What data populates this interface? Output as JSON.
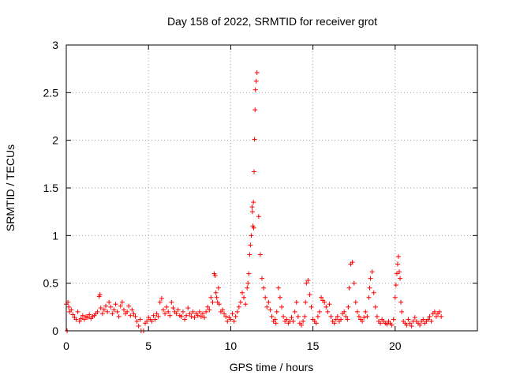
{
  "chart_data": {
    "type": "scatter",
    "title": "Day 158 of 2022, SRMTID for receiver grot",
    "xlabel": "GPS time / hours",
    "ylabel": "SRMTID / TECUs",
    "xlim": [
      0,
      25
    ],
    "ylim": [
      0,
      3
    ],
    "xticks": [
      0,
      5,
      10,
      15,
      20
    ],
    "yticks": [
      0,
      0.5,
      1,
      1.5,
      2,
      2.5,
      3
    ],
    "xtick_labels": [
      "0",
      "5",
      "10",
      "15",
      "20"
    ],
    "ytick_labels": [
      "0",
      "0.5",
      "1",
      "1.5",
      "2",
      "2.5",
      "3"
    ],
    "grid": true,
    "marker": "+",
    "marker_color": "#ff0000",
    "series": [
      {
        "name": "SRMTID",
        "x": [
          0.0,
          0.05,
          0.1,
          0.15,
          0.2,
          0.3,
          0.4,
          0.5,
          0.6,
          0.7,
          0.8,
          0.9,
          1.0,
          1.1,
          1.2,
          1.3,
          1.4,
          1.5,
          1.6,
          1.7,
          1.8,
          1.9,
          2.0,
          2.05,
          2.1,
          2.2,
          2.3,
          2.4,
          2.5,
          2.6,
          2.7,
          2.8,
          2.9,
          3.0,
          3.1,
          3.2,
          3.3,
          3.4,
          3.5,
          3.6,
          3.7,
          3.8,
          3.9,
          4.0,
          4.1,
          4.2,
          4.3,
          4.4,
          4.5,
          4.55,
          4.7,
          4.8,
          4.9,
          5.0,
          5.1,
          5.2,
          5.3,
          5.4,
          5.5,
          5.6,
          5.7,
          5.8,
          5.9,
          6.0,
          6.1,
          6.2,
          6.3,
          6.4,
          6.5,
          6.6,
          6.7,
          6.8,
          6.9,
          7.0,
          7.1,
          7.2,
          7.3,
          7.4,
          7.5,
          7.6,
          7.7,
          7.8,
          7.9,
          8.0,
          8.1,
          8.2,
          8.3,
          8.4,
          8.5,
          8.6,
          8.7,
          8.8,
          8.9,
          9.0,
          9.05,
          9.1,
          9.15,
          9.2,
          9.25,
          9.3,
          9.4,
          9.5,
          9.6,
          9.7,
          9.8,
          9.9,
          10.0,
          10.1,
          10.2,
          10.3,
          10.4,
          10.5,
          10.6,
          10.7,
          10.8,
          10.9,
          11.0,
          11.05,
          11.1,
          11.15,
          11.2,
          11.25,
          11.3,
          11.32,
          11.35,
          11.38,
          11.4,
          11.42,
          11.45,
          11.48,
          11.5,
          11.55,
          11.6,
          11.7,
          11.8,
          11.9,
          12.0,
          12.1,
          12.2,
          12.3,
          12.4,
          12.5,
          12.6,
          12.7,
          12.75,
          12.8,
          12.9,
          13.0,
          13.1,
          13.2,
          13.3,
          13.4,
          13.5,
          13.6,
          13.7,
          13.8,
          13.9,
          14.0,
          14.1,
          14.2,
          14.3,
          14.4,
          14.5,
          14.55,
          14.6,
          14.7,
          14.8,
          14.9,
          15.0,
          15.1,
          15.2,
          15.3,
          15.4,
          15.5,
          15.6,
          15.7,
          15.8,
          15.9,
          16.0,
          16.1,
          16.2,
          16.3,
          16.4,
          16.5,
          16.6,
          16.7,
          16.8,
          16.9,
          17.0,
          17.1,
          17.15,
          17.2,
          17.3,
          17.4,
          17.5,
          17.6,
          17.7,
          17.8,
          17.9,
          18.0,
          18.1,
          18.2,
          18.3,
          18.4,
          18.45,
          18.5,
          18.6,
          18.7,
          18.8,
          18.9,
          19.0,
          19.1,
          19.2,
          19.3,
          19.4,
          19.5,
          19.6,
          19.7,
          19.8,
          19.9,
          20.0,
          20.05,
          20.1,
          20.15,
          20.2,
          20.25,
          20.3,
          20.35,
          20.4,
          20.5,
          20.6,
          20.7,
          20.8,
          20.9,
          21.0,
          21.1,
          21.2,
          21.3,
          21.4,
          21.5,
          21.6,
          21.7,
          21.8,
          21.9,
          22.0,
          22.1,
          22.2,
          22.3,
          22.4,
          22.5,
          22.6,
          22.7,
          22.8
        ],
        "y": [
          0.28,
          0.0,
          0.3,
          0.25,
          0.2,
          0.22,
          0.17,
          0.14,
          0.12,
          0.2,
          0.1,
          0.13,
          0.16,
          0.12,
          0.15,
          0.14,
          0.17,
          0.13,
          0.15,
          0.16,
          0.18,
          0.2,
          0.36,
          0.38,
          0.24,
          0.18,
          0.22,
          0.26,
          0.2,
          0.3,
          0.25,
          0.18,
          0.22,
          0.28,
          0.2,
          0.15,
          0.26,
          0.3,
          0.22,
          0.18,
          0.2,
          0.26,
          0.16,
          0.22,
          0.18,
          0.15,
          0.1,
          0.05,
          0.12,
          0.0,
          0.0,
          0.08,
          0.1,
          0.14,
          0.12,
          0.1,
          0.16,
          0.12,
          0.18,
          0.15,
          0.3,
          0.34,
          0.22,
          0.18,
          0.25,
          0.2,
          0.16,
          0.3,
          0.24,
          0.2,
          0.18,
          0.22,
          0.16,
          0.15,
          0.2,
          0.12,
          0.16,
          0.24,
          0.18,
          0.15,
          0.2,
          0.14,
          0.18,
          0.16,
          0.2,
          0.15,
          0.18,
          0.14,
          0.2,
          0.25,
          0.22,
          0.35,
          0.3,
          0.6,
          0.58,
          0.4,
          0.35,
          0.3,
          0.45,
          0.28,
          0.2,
          0.22,
          0.18,
          0.15,
          0.1,
          0.14,
          0.12,
          0.18,
          0.1,
          0.15,
          0.2,
          0.25,
          0.3,
          0.4,
          0.35,
          0.28,
          0.45,
          0.5,
          0.6,
          0.8,
          0.9,
          1.0,
          1.3,
          1.25,
          1.1,
          1.35,
          1.08,
          1.67,
          2.01,
          2.32,
          2.53,
          2.62,
          2.71,
          1.2,
          0.8,
          0.55,
          0.45,
          0.35,
          0.25,
          0.3,
          0.22,
          0.15,
          0.1,
          0.12,
          0.08,
          0.2,
          0.45,
          0.35,
          0.25,
          0.15,
          0.1,
          0.12,
          0.08,
          0.1,
          0.14,
          0.1,
          0.2,
          0.3,
          0.15,
          0.08,
          0.06,
          0.1,
          0.15,
          0.3,
          0.5,
          0.53,
          0.38,
          0.25,
          0.12,
          0.1,
          0.08,
          0.15,
          0.2,
          0.35,
          0.32,
          0.3,
          0.25,
          0.2,
          0.28,
          0.15,
          0.1,
          0.08,
          0.12,
          0.15,
          0.1,
          0.12,
          0.18,
          0.2,
          0.15,
          0.12,
          0.25,
          0.45,
          0.7,
          0.72,
          0.5,
          0.3,
          0.2,
          0.15,
          0.12,
          0.1,
          0.14,
          0.2,
          0.15,
          0.35,
          0.45,
          0.55,
          0.62,
          0.4,
          0.25,
          0.15,
          0.1,
          0.08,
          0.12,
          0.1,
          0.08,
          0.07,
          0.1,
          0.08,
          0.06,
          0.12,
          0.35,
          0.48,
          0.6,
          0.7,
          0.78,
          0.62,
          0.55,
          0.3,
          0.2,
          0.1,
          0.08,
          0.06,
          0.12,
          0.08,
          0.05,
          0.1,
          0.14,
          0.1,
          0.08,
          0.06,
          0.1,
          0.12,
          0.08,
          0.1,
          0.12,
          0.15,
          0.1,
          0.18,
          0.2,
          0.15,
          0.18,
          0.2,
          0.15
        ]
      }
    ]
  }
}
